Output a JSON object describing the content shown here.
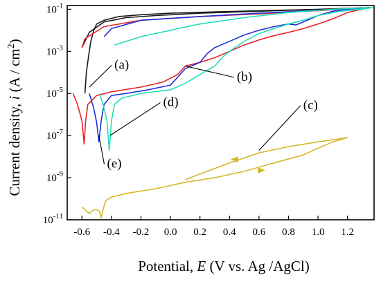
{
  "chart_data": {
    "type": "line",
    "title": "",
    "xlabel": {
      "prefix": "Potential, ",
      "symbol": "E",
      "suffix": " (V vs. Ag /AgCl)"
    },
    "ylabel": {
      "prefix": "Current density, ",
      "symbol": "i",
      "suffix": " (A / cm",
      "sup": "2",
      "close": ")"
    },
    "y_scale": "log",
    "xlim": [
      -0.7,
      1.38
    ],
    "ylim": [
      1e-11,
      0.15
    ],
    "x_ticks": [
      "-0.6",
      "-0.4",
      "-0.2",
      "0.0",
      "0.2",
      "0.4",
      "0.6",
      "0.8",
      "1.0",
      "1.2"
    ],
    "x_tick_values": [
      -0.6,
      -0.4,
      -0.2,
      0.0,
      0.2,
      0.4,
      0.6,
      0.8,
      1.0,
      1.2
    ],
    "y_ticks": [
      {
        "base": "10",
        "exp": "-11",
        "value": 1e-11
      },
      {
        "base": "10",
        "exp": "-9",
        "value": 1e-09
      },
      {
        "base": "10",
        "exp": "-7",
        "value": 1e-07
      },
      {
        "base": "10",
        "exp": "-5",
        "value": 1e-05
      },
      {
        "base": "10",
        "exp": "-3",
        "value": 0.001
      },
      {
        "base": "10",
        "exp": "-1",
        "value": 0.1
      }
    ],
    "grid": false,
    "legend": "none",
    "series": [
      {
        "label": "(a)",
        "color": "#1a1a1a",
        "forward": [
          [
            -0.58,
            1e-05
          ],
          [
            -0.57,
            0.0001
          ],
          [
            -0.555,
            0.0006
          ],
          [
            -0.54,
            0.003
          ],
          [
            -0.52,
            0.01
          ],
          [
            -0.5,
            0.02
          ],
          [
            -0.45,
            0.03
          ],
          [
            -0.35,
            0.045
          ],
          [
            -0.2,
            0.055
          ],
          [
            0.0,
            0.065
          ],
          [
            0.3,
            0.075
          ],
          [
            0.6,
            0.085
          ],
          [
            0.9,
            0.095
          ],
          [
            1.1,
            0.1
          ],
          [
            1.25,
            0.11
          ],
          [
            1.35,
            0.12
          ]
        ],
        "reverse": [
          [
            1.35,
            0.12
          ],
          [
            1.0,
            0.1
          ],
          [
            0.6,
            0.08
          ],
          [
            0.2,
            0.065
          ],
          [
            -0.1,
            0.05
          ],
          [
            -0.3,
            0.04
          ],
          [
            -0.45,
            0.025
          ],
          [
            -0.55,
            0.008
          ],
          [
            -0.6,
            0.0015
          ]
        ]
      },
      {
        "label": "(b)",
        "color": "#e8222a",
        "forward": [
          [
            -0.66,
            1e-05
          ],
          [
            -0.63,
            3e-06
          ],
          [
            -0.6,
            5e-07
          ],
          [
            -0.585,
            4e-08
          ],
          [
            -0.575,
            5e-07
          ],
          [
            -0.56,
            3e-06
          ],
          [
            -0.5,
            8e-06
          ],
          [
            -0.4,
            1.2e-05
          ],
          [
            -0.2,
            2e-05
          ],
          [
            -0.05,
            3.5e-05
          ],
          [
            0.05,
            8e-05
          ],
          [
            0.1,
            0.0002
          ],
          [
            0.2,
            0.0003
          ],
          [
            0.3,
            0.0005
          ],
          [
            0.4,
            0.001
          ],
          [
            0.5,
            0.002
          ],
          [
            0.6,
            0.0035
          ],
          [
            0.7,
            0.0055
          ],
          [
            0.8,
            0.008
          ],
          [
            0.9,
            0.012
          ],
          [
            1.0,
            0.02
          ],
          [
            1.1,
            0.035
          ],
          [
            1.2,
            0.07
          ],
          [
            1.3,
            0.1
          ],
          [
            1.35,
            0.12
          ]
        ],
        "reverse": [
          [
            1.35,
            0.12
          ],
          [
            1.0,
            0.085
          ],
          [
            0.6,
            0.06
          ],
          [
            0.2,
            0.045
          ],
          [
            -0.2,
            0.03
          ],
          [
            -0.45,
            0.015
          ],
          [
            -0.58,
            0.004
          ],
          [
            -0.6,
            0.0015
          ]
        ]
      },
      {
        "label": "(e)",
        "color": "#1c2fd8",
        "forward": [
          [
            -0.55,
            1e-05
          ],
          [
            -0.52,
            2e-06
          ],
          [
            -0.5,
            4e-07
          ],
          [
            -0.485,
            5e-08
          ],
          [
            -0.47,
            5e-07
          ],
          [
            -0.45,
            3e-06
          ],
          [
            -0.4,
            8e-06
          ],
          [
            -0.3,
            1e-05
          ],
          [
            -0.15,
            1.5e-05
          ],
          [
            0.0,
            2.5e-05
          ],
          [
            0.05,
            6e-05
          ],
          [
            0.1,
            0.00015
          ],
          [
            0.2,
            0.0003
          ],
          [
            0.25,
            0.0008
          ],
          [
            0.3,
            0.0015
          ],
          [
            0.4,
            0.003
          ],
          [
            0.5,
            0.006
          ],
          [
            0.6,
            0.01
          ],
          [
            0.7,
            0.015
          ],
          [
            0.8,
            0.02
          ],
          [
            0.85,
            0.018
          ],
          [
            0.9,
            0.025
          ],
          [
            1.0,
            0.05
          ],
          [
            1.1,
            0.08
          ],
          [
            1.2,
            0.1
          ],
          [
            1.35,
            0.12
          ]
        ],
        "reverse": [
          [
            1.35,
            0.12
          ],
          [
            1.0,
            0.09
          ],
          [
            0.6,
            0.065
          ],
          [
            0.2,
            0.045
          ],
          [
            -0.2,
            0.03
          ],
          [
            -0.4,
            0.012
          ],
          [
            -0.45,
            0.005
          ]
        ]
      },
      {
        "label": "(d)",
        "color": "#1fe0b8",
        "forward": [
          [
            -0.48,
            1e-05
          ],
          [
            -0.45,
            2e-06
          ],
          [
            -0.43,
            5e-07
          ],
          [
            -0.415,
            2e-08
          ],
          [
            -0.4,
            5e-07
          ],
          [
            -0.38,
            3e-06
          ],
          [
            -0.33,
            6e-06
          ],
          [
            -0.2,
            1e-05
          ],
          [
            0.0,
            1.5e-05
          ],
          [
            0.1,
            3e-05
          ],
          [
            0.2,
            8e-05
          ],
          [
            0.3,
            0.0002
          ],
          [
            0.35,
            0.0005
          ],
          [
            0.4,
            0.001
          ],
          [
            0.5,
            0.003
          ],
          [
            0.6,
            0.007
          ],
          [
            0.7,
            0.012
          ],
          [
            0.8,
            0.02
          ],
          [
            0.9,
            0.03
          ],
          [
            1.0,
            0.05
          ],
          [
            1.15,
            0.08
          ],
          [
            1.3,
            0.1
          ],
          [
            1.37,
            0.12
          ]
        ],
        "reverse": [
          [
            1.37,
            0.12
          ],
          [
            1.1,
            0.1
          ],
          [
            0.8,
            0.07
          ],
          [
            0.5,
            0.04
          ],
          [
            0.2,
            0.02
          ],
          [
            0.0,
            0.01
          ],
          [
            -0.2,
            0.005
          ],
          [
            -0.3,
            0.003
          ],
          [
            -0.38,
            0.002
          ]
        ]
      },
      {
        "label": "(c)",
        "color": "#d4b82a",
        "forward": [
          [
            -0.6,
            4e-11
          ],
          [
            -0.55,
            2e-11
          ],
          [
            -0.52,
            3e-11
          ],
          [
            -0.5,
            3e-11
          ],
          [
            -0.48,
            2.5e-11
          ],
          [
            -0.47,
            1.2e-11
          ],
          [
            -0.46,
            2.5e-11
          ],
          [
            -0.44,
            8e-11
          ],
          [
            -0.4,
            1.2e-10
          ],
          [
            -0.3,
            1.8e-10
          ],
          [
            -0.1,
            3e-10
          ],
          [
            0.1,
            6e-10
          ],
          [
            0.3,
            1e-09
          ],
          [
            0.5,
            2e-09
          ],
          [
            0.7,
            5e-09
          ],
          [
            0.9,
            1.2e-08
          ],
          [
            1.0,
            2.5e-08
          ],
          [
            1.1,
            5e-08
          ],
          [
            1.2,
            8e-08
          ]
        ],
        "reverse": [
          [
            1.2,
            8e-08
          ],
          [
            1.0,
            5e-08
          ],
          [
            0.8,
            3e-08
          ],
          [
            0.6,
            1.5e-08
          ],
          [
            0.4,
            5e-09
          ],
          [
            0.2,
            1.5e-09
          ],
          [
            0.1,
            8e-10
          ]
        ]
      }
    ],
    "annotations": [
      {
        "label": "(a)",
        "x": -0.38,
        "y": 0.00015,
        "target": [
          -0.55,
          2e-05
        ]
      },
      {
        "label": "(b)",
        "x": 0.45,
        "y": 4e-05,
        "target": [
          0.1,
          0.0002
        ]
      },
      {
        "label": "(c)",
        "x": 0.9,
        "y": 1.8e-06,
        "target": [
          0.6,
          2e-08
        ]
      },
      {
        "label": "(d)",
        "x": -0.05,
        "y": 2.5e-06,
        "target": [
          -0.41,
          1e-07
        ]
      },
      {
        "label": "(e)",
        "x": -0.43,
        "y": 3e-09,
        "target": [
          -0.485,
          1e-07
        ]
      }
    ]
  }
}
